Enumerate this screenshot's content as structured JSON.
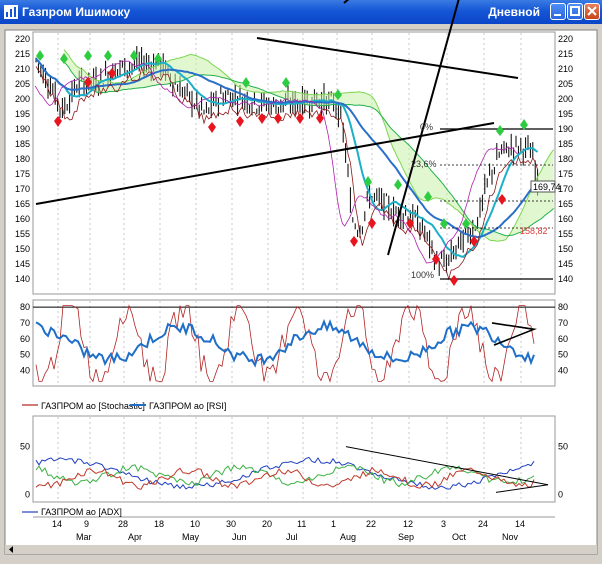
{
  "window": {
    "title": "Газпром Ишимоку",
    "period": "Дневной"
  },
  "chart_data": [
    {
      "type": "line",
      "panel": "price",
      "y_ticks": [
        220,
        215,
        210,
        205,
        200,
        195,
        190,
        185,
        180,
        175,
        170,
        165,
        160,
        155,
        150,
        145,
        140
      ],
      "ylim": [
        137,
        221
      ],
      "price_label": "169,74",
      "ichimoku_label": "158,82",
      "fib_labels": [
        "23,6%",
        "100%"
      ],
      "level_label_top": "0%"
    },
    {
      "type": "line",
      "panel": "oscillators",
      "y_ticks": [
        80,
        70,
        60,
        50,
        40
      ],
      "ylim": [
        32,
        82
      ],
      "legend": [
        {
          "name": "ГАЗПРОМ ао [Stochastic]",
          "color": "#b22222"
        },
        {
          "name": "ГАЗПРОМ ао [RSI]",
          "color": "#1f6fc8"
        }
      ]
    },
    {
      "type": "line",
      "panel": "adx",
      "y_ticks": [
        50,
        0
      ],
      "ylim": [
        -6,
        78
      ],
      "legend": [
        {
          "name": "ГАЗПРОМ ао [ADX]",
          "color": "#1f3fbf"
        }
      ]
    }
  ],
  "x_axis": {
    "days": [
      "14",
      "9",
      "28",
      "18",
      "10",
      "30",
      "20",
      "11",
      "1",
      "22",
      "12",
      "3",
      "24",
      "14"
    ],
    "months": [
      "Mar",
      "Apr",
      "May",
      "Jun",
      "Jul",
      "Aug",
      "Sep",
      "Oct",
      "Nov"
    ]
  },
  "colors": {
    "price_bars": "#000000",
    "kijun": "#1bb0c8",
    "tenkan": "#8b1a1a",
    "cloud_green": "#22b14c",
    "senkou": "#7cd651",
    "chikou": "#b01fb0",
    "ma_blue": "#2a6fc9",
    "arrow_up": "#2ecc40",
    "arrow_down": "#e8141e"
  }
}
